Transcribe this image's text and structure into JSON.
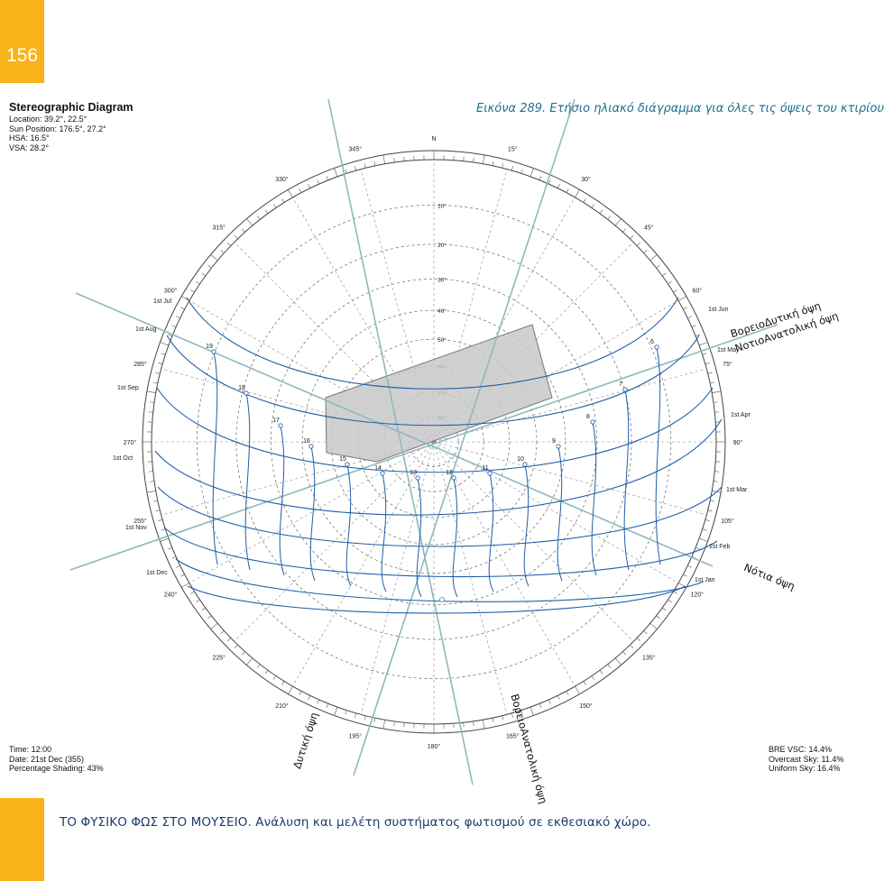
{
  "page_number": "156",
  "caption": "Εικόνα 289. Ετήσιο ηλιακό διάγραμμα για όλες τις όψεις του κτιρίου",
  "footer": "ΤΟ ΦΥΣΙΚΟ ΦΩΣ ΣΤΟ ΜΟΥΣΕΙΟ. Ανάλυση και μελέτη συστήματος φωτισμού σε εκθεσιακό χώρο.",
  "colors": {
    "accent": "#f6b418",
    "footer_text": "#1b3a6b",
    "caption": "#1f6f8d",
    "sun_path": "#1f5fa8",
    "shading": "#c8c8c8",
    "facade": "#8fb8bf"
  },
  "header_info": {
    "title": "Stereographic Diagram",
    "location": "Location: 39.2°, 22.5°",
    "sun_position": "Sun Position: 176.5°, 27.2°",
    "hsa": "HSA: 16.5°",
    "vsa": "VSA: 28.2°"
  },
  "bottom_left": {
    "time": "Time: 12:00",
    "date": "Date: 21st Dec (355)",
    "shading": "Percentage Shading: 43%"
  },
  "bottom_right": {
    "bre_vsc": "BRE VSC: 14.4%",
    "overcast": "Overcast Sky: 11.4%",
    "uniform": "Uniform Sky: 16.4%"
  },
  "azimuth_labels": [
    "N",
    "15°",
    "30°",
    "45°",
    "60°",
    "75°",
    "90°",
    "105°",
    "120°",
    "135°",
    "150°",
    "165°",
    "180°",
    "195°",
    "210°",
    "225°",
    "240°",
    "255°",
    "270°",
    "285°",
    "300°",
    "315°",
    "330°",
    "345°"
  ],
  "altitude_labels": [
    "10°",
    "20°",
    "30°",
    "40°",
    "50°",
    "60°",
    "70°",
    "80°"
  ],
  "month_labels_right": [
    "1st Jun",
    "1st May",
    "1st Apr",
    "1st Mar",
    "1st Feb",
    "1st Jan"
  ],
  "month_labels_left": [
    "1st Jul",
    "1st Aug",
    "1st Sep",
    "1st Oct",
    "1st Nov",
    "1st Dec"
  ],
  "hour_labels": [
    "6",
    "7",
    "8",
    "9",
    "10",
    "11",
    "12",
    "13",
    "14",
    "15",
    "16",
    "17",
    "18",
    "19"
  ],
  "facade_labels": {
    "nw": "ΒορειοΔυτική όψη",
    "se": "ΝοτιοΑνατολική όψη",
    "s": "Νότια όψη",
    "w": "Δυτική όψη",
    "ne": "ΒορειοΑνατολική όψη"
  }
}
